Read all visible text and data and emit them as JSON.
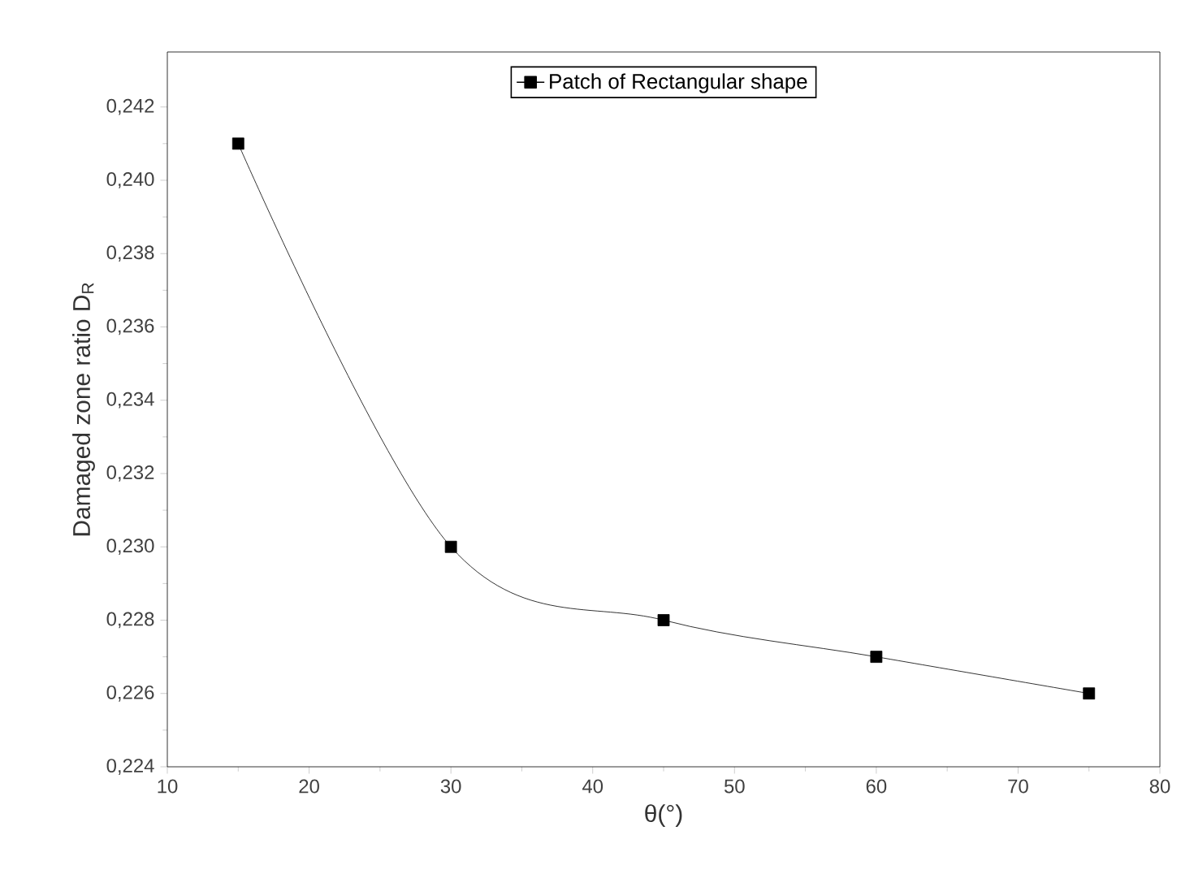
{
  "chart_data": {
    "type": "line",
    "xlabel": "θ(°)",
    "ylabel": "Damaged zone ratio D$_{R}$",
    "x": [
      15,
      30,
      45,
      60,
      75
    ],
    "series": [
      {
        "name": "Patch of Rectangular shape",
        "color": "#000000",
        "values": [
          0.241,
          0.23,
          0.228,
          0.227,
          0.226
        ]
      }
    ],
    "xlim": [
      10,
      80
    ],
    "xticks": [
      10,
      20,
      30,
      40,
      50,
      60,
      70,
      80
    ],
    "ylim": [
      0.224,
      0.2435
    ],
    "yticks": [
      {
        "value": 0.224,
        "label": "0,224"
      },
      {
        "value": 0.226,
        "label": "0,226"
      },
      {
        "value": 0.228,
        "label": "0,228"
      },
      {
        "value": 0.23,
        "label": "0,230"
      },
      {
        "value": 0.232,
        "label": "0,232"
      },
      {
        "value": 0.234,
        "label": "0,234"
      },
      {
        "value": 0.236,
        "label": "0,236"
      },
      {
        "value": 0.238,
        "label": "0,238"
      },
      {
        "value": 0.24,
        "label": "0,240"
      },
      {
        "value": 0.242,
        "label": "0,242"
      }
    ],
    "marker": "square",
    "legend": "top",
    "grid": false
  }
}
